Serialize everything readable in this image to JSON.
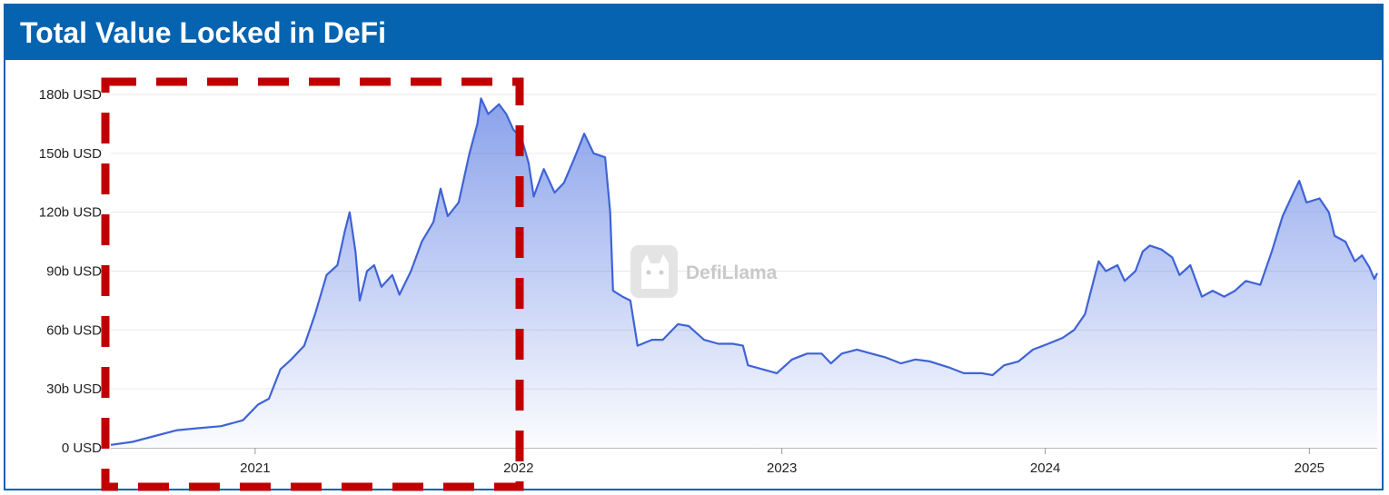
{
  "header": {
    "title": "Total Value Locked in DeFi"
  },
  "watermark": {
    "text": "DefiLlama",
    "icon": "llama-logo-icon"
  },
  "colors": {
    "header": "#0563b0",
    "line": "#3f63d6",
    "highlight": "#c00000"
  },
  "chart_data": {
    "type": "area",
    "title": "Total Value Locked in DeFi",
    "xlabel": "",
    "ylabel": "",
    "y_unit": "b USD",
    "ylim": [
      0,
      180
    ],
    "yticks": [
      0,
      30,
      60,
      90,
      120,
      150,
      180
    ],
    "ytick_labels": [
      "0 USD",
      "30b USD",
      "60b USD",
      "90b USD",
      "120b USD",
      "150b USD",
      "180b USD"
    ],
    "xlim": [
      "2020-06-15",
      "2025-04-05"
    ],
    "xticks": [
      "2021-01-01",
      "2022-01-01",
      "2023-01-01",
      "2024-01-01",
      "2025-01-01"
    ],
    "xtick_labels": [
      "2021",
      "2022",
      "2023",
      "2024",
      "2025"
    ],
    "grid": "horizontal",
    "highlight_range": [
      "2020-06-15",
      "2021-12-31"
    ],
    "series": [
      {
        "values": [
          [
            "2020-06-15",
            1.5
          ],
          [
            "2020-07-15",
            3
          ],
          [
            "2020-08-15",
            6
          ],
          [
            "2020-09-15",
            9
          ],
          [
            "2020-10-15",
            10
          ],
          [
            "2020-11-15",
            11
          ],
          [
            "2020-12-15",
            14
          ],
          [
            "2021-01-05",
            22
          ],
          [
            "2021-01-20",
            25
          ],
          [
            "2021-02-05",
            40
          ],
          [
            "2021-02-20",
            45
          ],
          [
            "2021-03-10",
            52
          ],
          [
            "2021-03-25",
            68
          ],
          [
            "2021-04-10",
            88
          ],
          [
            "2021-04-25",
            93
          ],
          [
            "2021-05-05",
            110
          ],
          [
            "2021-05-12",
            120
          ],
          [
            "2021-05-20",
            100
          ],
          [
            "2021-05-26",
            75
          ],
          [
            "2021-06-05",
            90
          ],
          [
            "2021-06-15",
            93
          ],
          [
            "2021-06-25",
            82
          ],
          [
            "2021-07-10",
            88
          ],
          [
            "2021-07-20",
            78
          ],
          [
            "2021-08-05",
            90
          ],
          [
            "2021-08-20",
            105
          ],
          [
            "2021-09-05",
            115
          ],
          [
            "2021-09-15",
            132
          ],
          [
            "2021-09-25",
            118
          ],
          [
            "2021-10-10",
            125
          ],
          [
            "2021-10-25",
            150
          ],
          [
            "2021-11-05",
            165
          ],
          [
            "2021-11-10",
            178
          ],
          [
            "2021-11-20",
            170
          ],
          [
            "2021-12-05",
            175
          ],
          [
            "2021-12-15",
            170
          ],
          [
            "2021-12-25",
            162
          ],
          [
            "2022-01-05",
            158
          ],
          [
            "2022-01-15",
            145
          ],
          [
            "2022-01-22",
            128
          ],
          [
            "2022-02-05",
            142
          ],
          [
            "2022-02-20",
            130
          ],
          [
            "2022-03-05",
            135
          ],
          [
            "2022-03-20",
            148
          ],
          [
            "2022-04-02",
            160
          ],
          [
            "2022-04-15",
            150
          ],
          [
            "2022-05-01",
            148
          ],
          [
            "2022-05-08",
            120
          ],
          [
            "2022-05-12",
            80
          ],
          [
            "2022-05-25",
            77
          ],
          [
            "2022-06-05",
            75
          ],
          [
            "2022-06-15",
            52
          ],
          [
            "2022-07-05",
            55
          ],
          [
            "2022-07-20",
            55
          ],
          [
            "2022-08-10",
            63
          ],
          [
            "2022-08-25",
            62
          ],
          [
            "2022-09-15",
            55
          ],
          [
            "2022-10-05",
            53
          ],
          [
            "2022-10-25",
            53
          ],
          [
            "2022-11-08",
            52
          ],
          [
            "2022-11-15",
            42
          ],
          [
            "2022-12-05",
            40
          ],
          [
            "2022-12-25",
            38
          ],
          [
            "2023-01-15",
            45
          ],
          [
            "2023-02-05",
            48
          ],
          [
            "2023-02-25",
            48
          ],
          [
            "2023-03-10",
            43
          ],
          [
            "2023-03-25",
            48
          ],
          [
            "2023-04-15",
            50
          ],
          [
            "2023-05-05",
            48
          ],
          [
            "2023-05-25",
            46
          ],
          [
            "2023-06-15",
            43
          ],
          [
            "2023-07-05",
            45
          ],
          [
            "2023-07-25",
            44
          ],
          [
            "2023-08-20",
            41
          ],
          [
            "2023-09-10",
            38
          ],
          [
            "2023-10-05",
            38
          ],
          [
            "2023-10-20",
            37
          ],
          [
            "2023-11-05",
            42
          ],
          [
            "2023-11-25",
            44
          ],
          [
            "2023-12-15",
            50
          ],
          [
            "2024-01-05",
            53
          ],
          [
            "2024-01-25",
            56
          ],
          [
            "2024-02-10",
            60
          ],
          [
            "2024-02-25",
            68
          ],
          [
            "2024-03-10",
            88
          ],
          [
            "2024-03-15",
            95
          ],
          [
            "2024-03-25",
            90
          ],
          [
            "2024-04-10",
            93
          ],
          [
            "2024-04-20",
            85
          ],
          [
            "2024-05-05",
            90
          ],
          [
            "2024-05-15",
            100
          ],
          [
            "2024-05-25",
            103
          ],
          [
            "2024-06-10",
            101
          ],
          [
            "2024-06-25",
            97
          ],
          [
            "2024-07-05",
            88
          ],
          [
            "2024-07-20",
            93
          ],
          [
            "2024-08-05",
            77
          ],
          [
            "2024-08-20",
            80
          ],
          [
            "2024-09-05",
            77
          ],
          [
            "2024-09-20",
            80
          ],
          [
            "2024-10-05",
            85
          ],
          [
            "2024-10-25",
            83
          ],
          [
            "2024-11-10",
            100
          ],
          [
            "2024-11-25",
            118
          ],
          [
            "2024-12-10",
            130
          ],
          [
            "2024-12-18",
            136
          ],
          [
            "2024-12-28",
            125
          ],
          [
            "2025-01-15",
            127
          ],
          [
            "2025-01-28",
            120
          ],
          [
            "2025-02-05",
            108
          ],
          [
            "2025-02-20",
            105
          ],
          [
            "2025-03-05",
            95
          ],
          [
            "2025-03-15",
            98
          ],
          [
            "2025-03-25",
            92
          ],
          [
            "2025-04-01",
            86
          ],
          [
            "2025-04-05",
            89
          ]
        ]
      }
    ]
  }
}
